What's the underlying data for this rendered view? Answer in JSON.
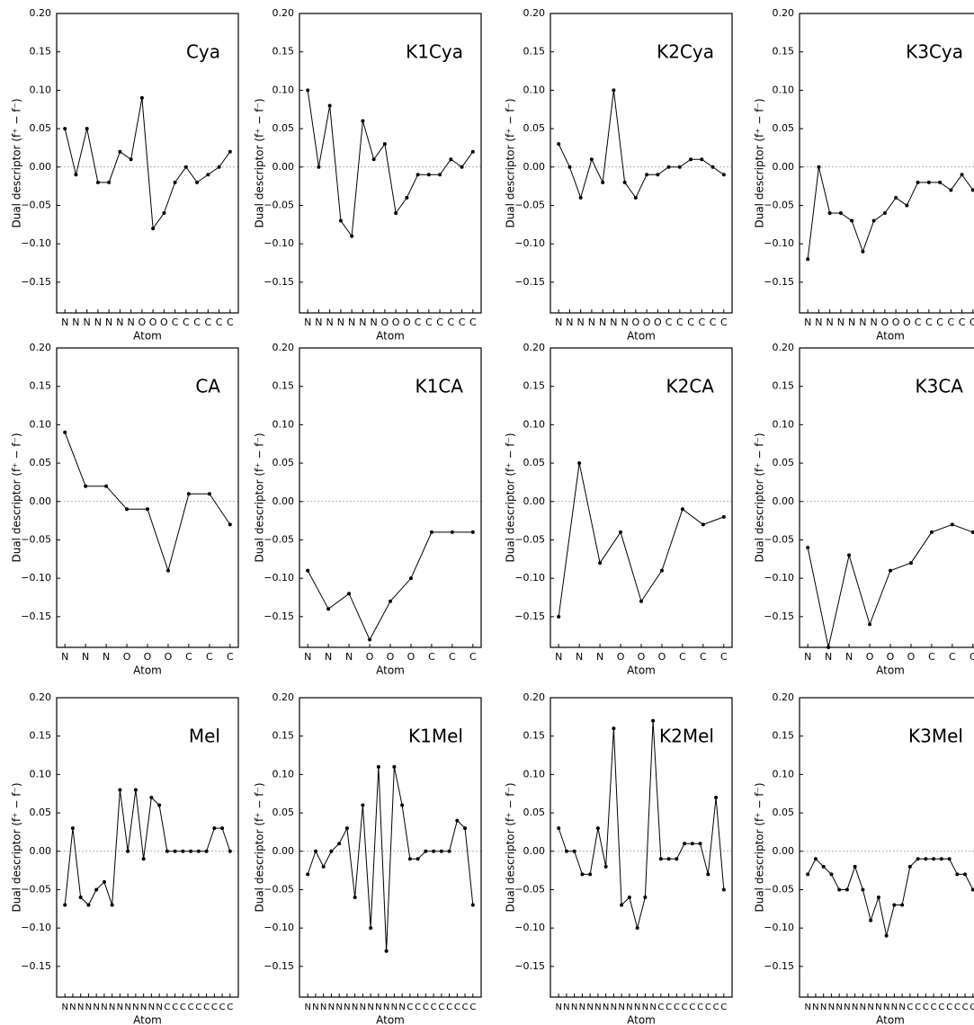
{
  "chart_data": [
    {
      "type": "line",
      "title": "Cya",
      "xlabel": "Atom",
      "ylabel": "Dual descriptor (f⁺ − f⁻)",
      "color": "#000000",
      "reference_line": 0,
      "categories": [
        "N",
        "N",
        "N",
        "N",
        "N",
        "N",
        "N",
        "O",
        "O",
        "O",
        "C",
        "C",
        "C",
        "C",
        "C",
        "C"
      ],
      "values": [
        0.05,
        -0.01,
        0.05,
        -0.02,
        -0.02,
        0.02,
        0.01,
        0.09,
        -0.08,
        -0.06,
        -0.02,
        0.0,
        -0.02,
        -0.01,
        0.0,
        0.02
      ],
      "ylim": [
        -0.19,
        0.2
      ],
      "yticks": [
        {
          "value": -0.15,
          "label": "−0.15"
        },
        {
          "value": -0.1,
          "label": "−0.10"
        },
        {
          "value": -0.05,
          "label": "−0.05"
        },
        {
          "value": 0,
          "label": "0.00"
        },
        {
          "value": 0.05,
          "label": "0.05"
        },
        {
          "value": 0.1,
          "label": "0.10"
        },
        {
          "value": 0.15,
          "label": "0.15"
        },
        {
          "value": 0.2,
          "label": "0.20"
        }
      ]
    },
    {
      "type": "line",
      "title": "K1Cya",
      "xlabel": "Atom",
      "ylabel": "Dual descriptor (f⁺ − f⁻)",
      "color": "#000000",
      "reference_line": 0,
      "categories": [
        "N",
        "N",
        "N",
        "N",
        "N",
        "N",
        "N",
        "O",
        "O",
        "O",
        "C",
        "C",
        "C",
        "C",
        "C",
        "C"
      ],
      "values": [
        0.1,
        0.0,
        0.08,
        -0.07,
        -0.09,
        0.06,
        0.01,
        0.03,
        -0.06,
        -0.04,
        -0.01,
        -0.01,
        -0.01,
        0.01,
        0.0,
        0.02
      ],
      "ylim": [
        -0.19,
        0.2
      ],
      "yticks": [
        {
          "value": -0.15,
          "label": "−0.15"
        },
        {
          "value": -0.1,
          "label": "−0.10"
        },
        {
          "value": -0.05,
          "label": "−0.05"
        },
        {
          "value": 0,
          "label": "0.00"
        },
        {
          "value": 0.05,
          "label": "0.05"
        },
        {
          "value": 0.1,
          "label": "0.10"
        },
        {
          "value": 0.15,
          "label": "0.15"
        },
        {
          "value": 0.2,
          "label": "0.20"
        }
      ]
    },
    {
      "type": "line",
      "title": "K2Cya",
      "xlabel": "Atom",
      "ylabel": "Dual descriptor (f⁺ − f⁻)",
      "color": "#000000",
      "reference_line": 0,
      "categories": [
        "N",
        "N",
        "N",
        "N",
        "N",
        "N",
        "N",
        "O",
        "O",
        "O",
        "C",
        "C",
        "C",
        "C",
        "C",
        "C"
      ],
      "values": [
        0.03,
        0.0,
        -0.04,
        0.01,
        -0.02,
        0.1,
        -0.02,
        -0.04,
        -0.01,
        -0.01,
        0.0,
        0.0,
        0.01,
        0.01,
        0.0,
        -0.01
      ],
      "ylim": [
        -0.19,
        0.2
      ],
      "yticks": [
        {
          "value": -0.15,
          "label": "−0.15"
        },
        {
          "value": -0.1,
          "label": "−0.10"
        },
        {
          "value": -0.05,
          "label": "−0.05"
        },
        {
          "value": 0,
          "label": "0.00"
        },
        {
          "value": 0.05,
          "label": "0.05"
        },
        {
          "value": 0.1,
          "label": "0.10"
        },
        {
          "value": 0.15,
          "label": "0.15"
        },
        {
          "value": 0.2,
          "label": "0.20"
        }
      ]
    },
    {
      "type": "line",
      "title": "K3Cya",
      "xlabel": "Atom",
      "ylabel": "Dual descriptor (f⁺ − f⁻)",
      "color": "#000000",
      "reference_line": 0,
      "categories": [
        "N",
        "N",
        "N",
        "N",
        "N",
        "N",
        "N",
        "O",
        "O",
        "O",
        "C",
        "C",
        "C",
        "C",
        "C",
        "C"
      ],
      "values": [
        -0.12,
        0.0,
        -0.06,
        -0.06,
        -0.07,
        -0.11,
        -0.07,
        -0.06,
        -0.04,
        -0.05,
        -0.02,
        -0.02,
        -0.02,
        -0.03,
        -0.01,
        -0.03
      ],
      "ylim": [
        -0.19,
        0.2
      ],
      "yticks": [
        {
          "value": -0.15,
          "label": "−0.15"
        },
        {
          "value": -0.1,
          "label": "−0.10"
        },
        {
          "value": -0.05,
          "label": "−0.05"
        },
        {
          "value": 0,
          "label": "0.00"
        },
        {
          "value": 0.05,
          "label": "0.05"
        },
        {
          "value": 0.1,
          "label": "0.10"
        },
        {
          "value": 0.15,
          "label": "0.15"
        },
        {
          "value": 0.2,
          "label": "0.20"
        }
      ]
    },
    {
      "type": "line",
      "title": "CA",
      "xlabel": "Atom",
      "ylabel": "Dual descriptor (f⁺ − f⁻)",
      "color": "#000000",
      "reference_line": 0,
      "categories": [
        "N",
        "N",
        "N",
        "O",
        "O",
        "O",
        "C",
        "C",
        "C"
      ],
      "values": [
        0.09,
        0.02,
        0.02,
        -0.01,
        -0.01,
        -0.09,
        0.01,
        0.01,
        -0.03
      ],
      "ylim": [
        -0.19,
        0.2
      ],
      "yticks": [
        {
          "value": -0.15,
          "label": "−0.15"
        },
        {
          "value": -0.1,
          "label": "−0.10"
        },
        {
          "value": -0.05,
          "label": "−0.05"
        },
        {
          "value": 0,
          "label": "0.00"
        },
        {
          "value": 0.05,
          "label": "0.05"
        },
        {
          "value": 0.1,
          "label": "0.10"
        },
        {
          "value": 0.15,
          "label": "0.15"
        },
        {
          "value": 0.2,
          "label": "0.20"
        }
      ]
    },
    {
      "type": "line",
      "title": "K1CA",
      "xlabel": "Atom",
      "ylabel": "Dual descriptor (f⁺ − f⁻)",
      "color": "#000000",
      "reference_line": 0,
      "categories": [
        "N",
        "N",
        "N",
        "O",
        "O",
        "O",
        "C",
        "C",
        "C"
      ],
      "values": [
        -0.09,
        -0.14,
        -0.12,
        -0.18,
        -0.13,
        -0.1,
        -0.04,
        -0.04,
        -0.04
      ],
      "ylim": [
        -0.19,
        0.2
      ],
      "yticks": [
        {
          "value": -0.15,
          "label": "−0.15"
        },
        {
          "value": -0.1,
          "label": "−0.10"
        },
        {
          "value": -0.05,
          "label": "−0.05"
        },
        {
          "value": 0,
          "label": "0.00"
        },
        {
          "value": 0.05,
          "label": "0.05"
        },
        {
          "value": 0.1,
          "label": "0.10"
        },
        {
          "value": 0.15,
          "label": "0.15"
        },
        {
          "value": 0.2,
          "label": "0.20"
        }
      ]
    },
    {
      "type": "line",
      "title": "K2CA",
      "xlabel": "Atom",
      "ylabel": "Dual descriptor (f⁺ − f⁻)",
      "color": "#000000",
      "reference_line": 0,
      "categories": [
        "N",
        "N",
        "N",
        "O",
        "O",
        "O",
        "C",
        "C",
        "C"
      ],
      "values": [
        -0.15,
        0.05,
        -0.08,
        -0.04,
        -0.13,
        -0.09,
        -0.01,
        -0.03,
        -0.02
      ],
      "ylim": [
        -0.19,
        0.2
      ],
      "yticks": [
        {
          "value": -0.15,
          "label": "−0.15"
        },
        {
          "value": -0.1,
          "label": "−0.10"
        },
        {
          "value": -0.05,
          "label": "−0.05"
        },
        {
          "value": 0,
          "label": "0.00"
        },
        {
          "value": 0.05,
          "label": "0.05"
        },
        {
          "value": 0.1,
          "label": "0.10"
        },
        {
          "value": 0.15,
          "label": "0.15"
        },
        {
          "value": 0.2,
          "label": "0.20"
        }
      ]
    },
    {
      "type": "line",
      "title": "K3CA",
      "xlabel": "Atom",
      "ylabel": "Dual descriptor (f⁺ − f⁻)",
      "color": "#000000",
      "reference_line": 0,
      "categories": [
        "N",
        "N",
        "N",
        "O",
        "O",
        "O",
        "C",
        "C",
        "C"
      ],
      "values": [
        -0.06,
        -0.19,
        -0.07,
        -0.16,
        -0.09,
        -0.08,
        -0.04,
        -0.03,
        -0.04
      ],
      "ylim": [
        -0.19,
        0.2
      ],
      "yticks": [
        {
          "value": -0.15,
          "label": "−0.15"
        },
        {
          "value": -0.1,
          "label": "−0.10"
        },
        {
          "value": -0.05,
          "label": "−0.05"
        },
        {
          "value": 0,
          "label": "0.00"
        },
        {
          "value": 0.05,
          "label": "0.05"
        },
        {
          "value": 0.1,
          "label": "0.10"
        },
        {
          "value": 0.15,
          "label": "0.15"
        },
        {
          "value": 0.2,
          "label": "0.20"
        }
      ]
    },
    {
      "type": "line",
      "title": "Mel",
      "xlabel": "Atom",
      "ylabel": "Dual descriptor (f⁺ − f⁻)",
      "color": "#000000",
      "reference_line": 0,
      "categories": [
        "N",
        "N",
        "N",
        "N",
        "N",
        "N",
        "N",
        "N",
        "N",
        "N",
        "N",
        "N",
        "N",
        "C",
        "C",
        "C",
        "C",
        "C",
        "C",
        "C",
        "C",
        "C"
      ],
      "values": [
        -0.07,
        0.03,
        -0.06,
        -0.07,
        -0.05,
        -0.04,
        -0.07,
        0.08,
        0.0,
        0.08,
        -0.01,
        0.07,
        0.06,
        0.0,
        0.0,
        0.0,
        0.0,
        0.0,
        0.0,
        0.03,
        0.03,
        0.0
      ],
      "ylim": [
        -0.19,
        0.2
      ],
      "yticks": [
        {
          "value": -0.15,
          "label": "−0.15"
        },
        {
          "value": -0.1,
          "label": "−0.10"
        },
        {
          "value": -0.05,
          "label": "−0.05"
        },
        {
          "value": 0,
          "label": "0.00"
        },
        {
          "value": 0.05,
          "label": "0.05"
        },
        {
          "value": 0.1,
          "label": "0.10"
        },
        {
          "value": 0.15,
          "label": "0.15"
        },
        {
          "value": 0.2,
          "label": "0.20"
        }
      ]
    },
    {
      "type": "line",
      "title": "K1Mel",
      "xlabel": "Atom",
      "ylabel": "Dual descriptor (f⁺ − f⁻)",
      "color": "#000000",
      "reference_line": 0,
      "categories": [
        "N",
        "N",
        "N",
        "N",
        "N",
        "N",
        "N",
        "N",
        "N",
        "N",
        "N",
        "N",
        "N",
        "C",
        "C",
        "C",
        "C",
        "C",
        "C",
        "C",
        "C",
        "C"
      ],
      "values": [
        -0.03,
        0.0,
        -0.02,
        0.0,
        0.01,
        0.03,
        -0.06,
        0.06,
        -0.1,
        0.11,
        -0.13,
        0.11,
        0.06,
        -0.01,
        -0.01,
        0.0,
        0.0,
        0.0,
        0.0,
        0.04,
        0.03,
        -0.07
      ],
      "ylim": [
        -0.19,
        0.2
      ],
      "yticks": [
        {
          "value": -0.15,
          "label": "−0.15"
        },
        {
          "value": -0.1,
          "label": "−0.10"
        },
        {
          "value": -0.05,
          "label": "−0.05"
        },
        {
          "value": 0,
          "label": "0.00"
        },
        {
          "value": 0.05,
          "label": "0.05"
        },
        {
          "value": 0.1,
          "label": "0.10"
        },
        {
          "value": 0.15,
          "label": "0.15"
        },
        {
          "value": 0.2,
          "label": "0.20"
        }
      ]
    },
    {
      "type": "line",
      "title": "K2Mel",
      "xlabel": "Atom",
      "ylabel": "Dual descriptor (f⁺ − f⁻)",
      "color": "#000000",
      "reference_line": 0,
      "categories": [
        "N",
        "N",
        "N",
        "N",
        "N",
        "N",
        "N",
        "N",
        "N",
        "N",
        "N",
        "N",
        "N",
        "C",
        "C",
        "C",
        "C",
        "C",
        "C",
        "C",
        "C",
        "C"
      ],
      "values": [
        0.03,
        0.0,
        0.0,
        -0.03,
        -0.03,
        0.03,
        -0.02,
        0.16,
        -0.07,
        -0.06,
        -0.1,
        -0.06,
        0.17,
        -0.01,
        -0.01,
        -0.01,
        0.01,
        0.01,
        0.01,
        -0.03,
        0.07,
        -0.05
      ],
      "ylim": [
        -0.19,
        0.2
      ],
      "yticks": [
        {
          "value": -0.15,
          "label": "−0.15"
        },
        {
          "value": -0.1,
          "label": "−0.10"
        },
        {
          "value": -0.05,
          "label": "−0.05"
        },
        {
          "value": 0,
          "label": "0.00"
        },
        {
          "value": 0.05,
          "label": "0.05"
        },
        {
          "value": 0.1,
          "label": "0.10"
        },
        {
          "value": 0.15,
          "label": "0.15"
        },
        {
          "value": 0.2,
          "label": "0.20"
        }
      ]
    },
    {
      "type": "line",
      "title": "K3Mel",
      "xlabel": "Atom",
      "ylabel": "Dual descriptor (f⁺ − f⁻)",
      "color": "#000000",
      "reference_line": 0,
      "categories": [
        "N",
        "N",
        "N",
        "N",
        "N",
        "N",
        "N",
        "N",
        "N",
        "N",
        "N",
        "N",
        "N",
        "C",
        "C",
        "C",
        "C",
        "C",
        "C",
        "C",
        "C",
        "C"
      ],
      "values": [
        -0.03,
        -0.01,
        -0.02,
        -0.03,
        -0.05,
        -0.05,
        -0.02,
        -0.05,
        -0.09,
        -0.06,
        -0.11,
        -0.07,
        -0.07,
        -0.02,
        -0.01,
        -0.01,
        -0.01,
        -0.01,
        -0.01,
        -0.03,
        -0.03,
        -0.05
      ],
      "ylim": [
        -0.19,
        0.2
      ],
      "yticks": [
        {
          "value": -0.15,
          "label": "−0.15"
        },
        {
          "value": -0.1,
          "label": "−0.10"
        },
        {
          "value": -0.05,
          "label": "−0.05"
        },
        {
          "value": 0,
          "label": "0.00"
        },
        {
          "value": 0.05,
          "label": "0.05"
        },
        {
          "value": 0.1,
          "label": "0.10"
        },
        {
          "value": 0.15,
          "label": "0.15"
        },
        {
          "value": 0.2,
          "label": "0.20"
        }
      ]
    }
  ]
}
